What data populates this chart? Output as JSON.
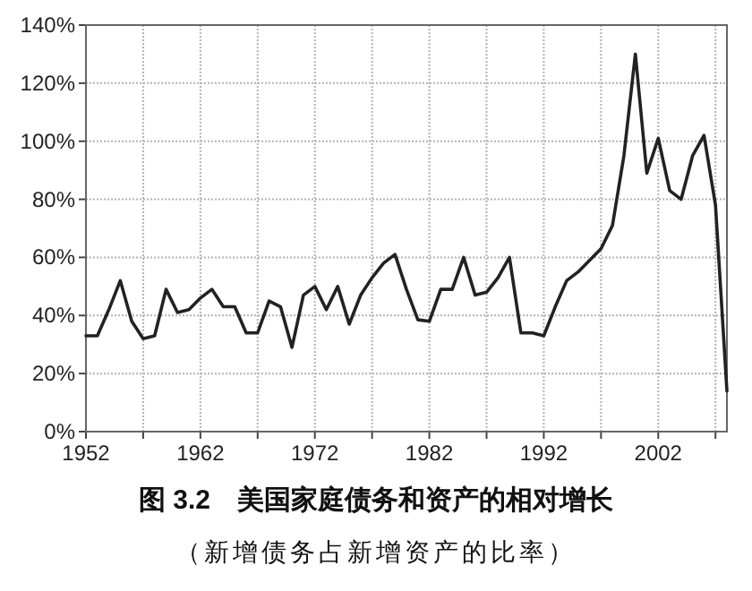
{
  "chart_data": {
    "type": "line",
    "title": "图 3.2　美国家庭债务和资产的相对增长",
    "subtitle": "（新增债务占新增资产的比率）",
    "x": [
      1952,
      1953,
      1954,
      1955,
      1956,
      1957,
      1958,
      1959,
      1960,
      1961,
      1962,
      1963,
      1964,
      1965,
      1966,
      1967,
      1968,
      1969,
      1970,
      1971,
      1972,
      1973,
      1974,
      1975,
      1976,
      1977,
      1978,
      1979,
      1980,
      1981,
      1982,
      1983,
      1984,
      1985,
      1986,
      1987,
      1988,
      1989,
      1990,
      1991,
      1992,
      1993,
      1994,
      1995,
      1996,
      1997,
      1998,
      1999,
      2000,
      2001,
      2002,
      2003,
      2004,
      2005,
      2006,
      2007,
      2008
    ],
    "series": [
      {
        "color": "#222222",
        "values": [
          33,
          33,
          42,
          52,
          38,
          32,
          33,
          49,
          41,
          42,
          46,
          49,
          43,
          43,
          34,
          34,
          45,
          43,
          29,
          47,
          50,
          42,
          50,
          37,
          47,
          53,
          58,
          61,
          49,
          38.5,
          38,
          49,
          49,
          60,
          47,
          48,
          53,
          60,
          34,
          34,
          33,
          43,
          52,
          55,
          59,
          63,
          71,
          95,
          130,
          89,
          101,
          83,
          80,
          95,
          102,
          78,
          14
        ]
      }
    ],
    "xlim": [
      1952,
      2008
    ],
    "xticks": [
      1952,
      {
        "value": 1957,
        "label": null
      },
      1962,
      {
        "value": 1967,
        "label": null
      },
      1972,
      {
        "value": 1977,
        "label": null
      },
      1982,
      {
        "value": 1987,
        "label": null
      },
      1992,
      {
        "value": 1997,
        "label": null
      },
      2002,
      {
        "value": 2007,
        "label": null
      }
    ],
    "ylim": [
      0,
      140
    ],
    "yticks": [
      {
        "value": 0,
        "label": "0%"
      },
      {
        "value": 20,
        "label": "20%"
      },
      {
        "value": 40,
        "label": "40%"
      },
      {
        "value": 60,
        "label": "60%"
      },
      {
        "value": 80,
        "label": "80%"
      },
      {
        "value": 100,
        "label": "100%"
      },
      {
        "value": 120,
        "label": "120%"
      },
      {
        "value": 140,
        "label": "140%"
      }
    ],
    "grid": true,
    "marker": "none",
    "line_style": "solid"
  }
}
